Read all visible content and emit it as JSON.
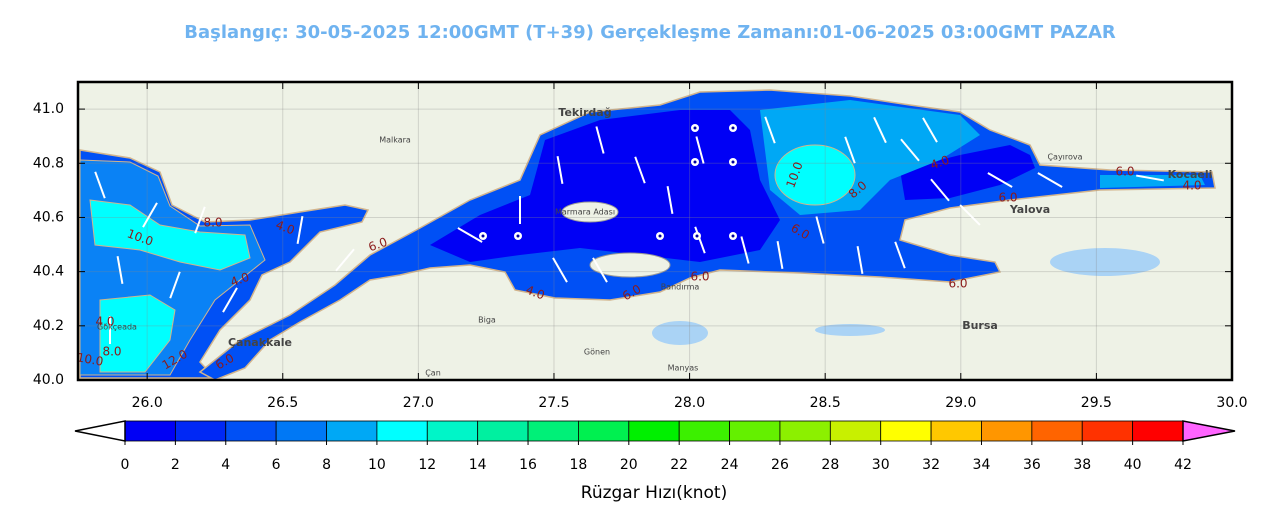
{
  "header": {
    "title": "Başlangıç: 30-05-2025 12:00GMT (T+39)   Gerçekleşme Zamanı:01-06-2025 03:00GMT PAZAR"
  },
  "map": {
    "xlim": [
      25.745,
      30.0
    ],
    "ylim": [
      40.0,
      41.1
    ],
    "grid": true,
    "xticks": [
      {
        "value": 26,
        "label": "26.0"
      },
      {
        "value": 26.5,
        "label": "26.5"
      },
      {
        "value": 27,
        "label": "27.0"
      },
      {
        "value": 27.5,
        "label": "27.5"
      },
      {
        "value": 28,
        "label": "28.0"
      },
      {
        "value": 28.5,
        "label": "28.5"
      },
      {
        "value": 29,
        "label": "29.0"
      },
      {
        "value": 29.5,
        "label": "29.5"
      },
      {
        "value": 30,
        "label": "30.0"
      }
    ],
    "yticks": [
      {
        "value": 40,
        "label": "40.0"
      },
      {
        "value": 40.2,
        "label": "40.2"
      },
      {
        "value": 40.4,
        "label": "40.4"
      },
      {
        "value": 40.6,
        "label": "40.6"
      },
      {
        "value": 40.8,
        "label": "40.8"
      },
      {
        "value": 41,
        "label": "41.0"
      }
    ],
    "places": [
      "Tekirdağ",
      "Malkara",
      "Çanakkale",
      "Biga",
      "Gönen",
      "Manyas",
      "Bandırma",
      "Bursa",
      "Yalova",
      "Kocaeli",
      "Çayırova",
      "Çan",
      "Gökçeada",
      "Marmara Adası"
    ],
    "contour_labels": [
      {
        "value": 10,
        "label": "10.0"
      },
      {
        "value": 8,
        "label": "8.0"
      },
      {
        "value": 6,
        "label": "6.0"
      },
      {
        "value": 4,
        "label": "4.0"
      },
      {
        "value": 6,
        "label": "6.0"
      },
      {
        "value": 6,
        "label": "6.0"
      },
      {
        "value": 4,
        "label": "4.0"
      },
      {
        "value": 8,
        "label": "8.0"
      },
      {
        "value": 4,
        "label": "4.0"
      },
      {
        "value": 10,
        "label": "10.0"
      },
      {
        "value": 4,
        "label": "4.0"
      },
      {
        "value": 6,
        "label": "6.0"
      },
      {
        "value": 6,
        "label": "6.0"
      },
      {
        "value": 6,
        "label": "6.0"
      },
      {
        "value": 4,
        "label": "4.0"
      },
      {
        "value": 6,
        "label": "6.0"
      },
      {
        "value": 4,
        "label": "4.0"
      },
      {
        "value": 8,
        "label": "8.0"
      },
      {
        "value": 10,
        "label": "10.0"
      },
      {
        "value": 12,
        "label": "12.0"
      },
      {
        "value": 6,
        "label": "6.0"
      }
    ]
  },
  "colorbar": {
    "label": "Rüzgar Hızı(knot)",
    "ticks": [
      0,
      2,
      4,
      6,
      8,
      10,
      12,
      14,
      16,
      18,
      20,
      22,
      24,
      26,
      28,
      30,
      32,
      34,
      36,
      38,
      40,
      42
    ],
    "colors": [
      "#0000f5",
      "#0028f5",
      "#0050f5",
      "#0078f5",
      "#00a8f5",
      "#00ffff",
      "#00f5c8",
      "#00f0a0",
      "#00f078",
      "#00f050",
      "#00f000",
      "#3cf000",
      "#64f000",
      "#8cf000",
      "#c8f000",
      "#ffff00",
      "#ffc800",
      "#ff9600",
      "#ff6400",
      "#ff3200",
      "#ff0000"
    ],
    "under_color": "#ffffff",
    "over_color": "#ff64ff"
  }
}
